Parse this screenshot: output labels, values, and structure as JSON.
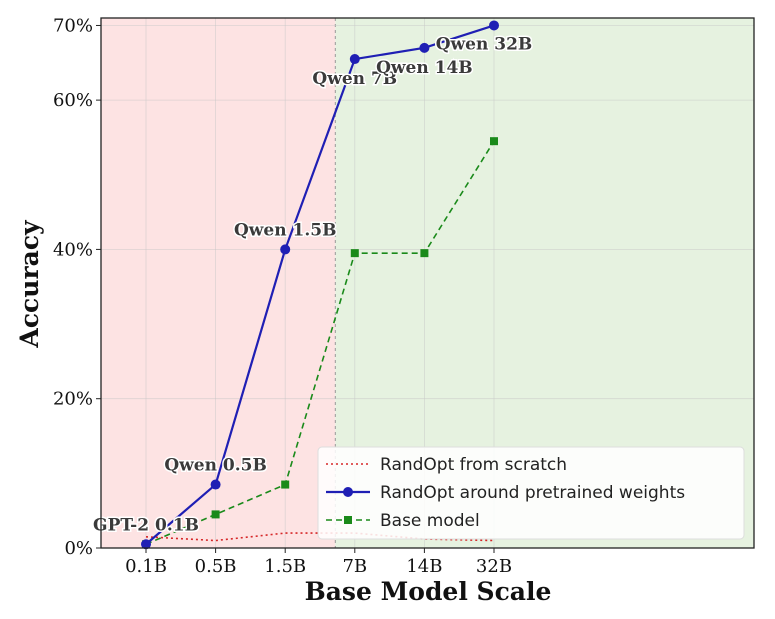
{
  "chart_data": {
    "type": "line",
    "title": "",
    "xlabel": "Base Model Scale",
    "ylabel": "Accuracy",
    "categories": [
      "0.1B",
      "0.5B",
      "1.5B",
      "7B",
      "14B",
      "32B"
    ],
    "ylim": [
      0,
      71
    ],
    "yticks": [
      0,
      20,
      40,
      60,
      70
    ],
    "ytick_labels": [
      "0%",
      "20%",
      "40%",
      "60%",
      "70%"
    ],
    "grid": true,
    "shaded_regions": [
      {
        "name": "red-region",
        "from_category": "0.1B",
        "to_x": 2.72,
        "color": "#fde3e3"
      },
      {
        "name": "green-region",
        "from_x": 2.72,
        "to_category": "32B",
        "color": "#e6f2e0"
      }
    ],
    "series": [
      {
        "name": "RandOpt from scratch",
        "style": "dotted",
        "color": "#d62728",
        "marker": "none",
        "values": [
          1.5,
          1.0,
          2.0,
          2.0,
          1.2,
          1.0
        ]
      },
      {
        "name": "RandOpt around pretrained weights",
        "style": "solid",
        "color": "#1f1fb4",
        "marker": "circle",
        "values": [
          0.5,
          8.5,
          40.0,
          65.5,
          67.0,
          70.0
        ]
      },
      {
        "name": "Base model",
        "style": "dashed",
        "color": "#1a8a1a",
        "marker": "square",
        "values": [
          0.5,
          4.5,
          8.5,
          39.5,
          39.5,
          54.5
        ]
      }
    ],
    "point_labels": [
      "GPT-2 0.1B",
      "Qwen 0.5B",
      "Qwen 1.5B",
      "Qwen 7B",
      "Qwen 14B",
      "Qwen 32B"
    ],
    "legend_position": "lower-right"
  }
}
